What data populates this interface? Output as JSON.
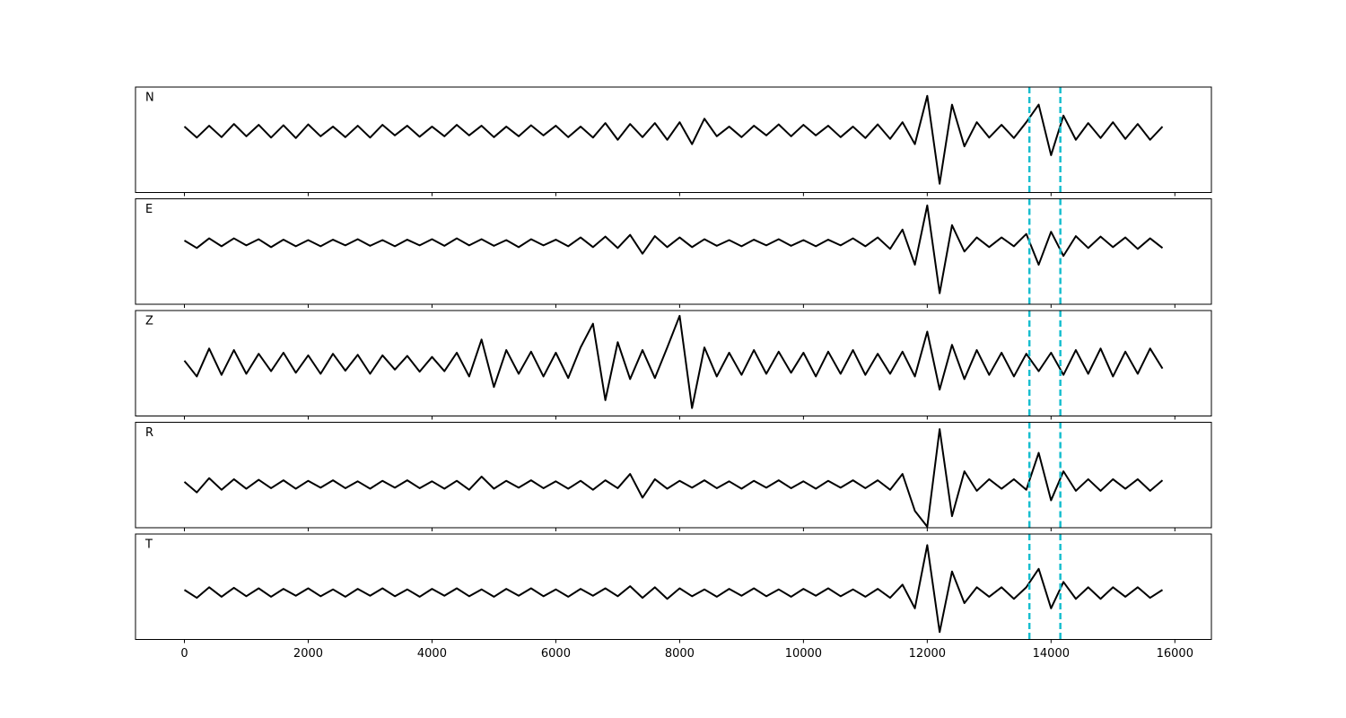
{
  "chart_data": [
    {
      "type": "line",
      "label": "N",
      "color": "#000000",
      "xlim": [
        -790,
        16590
      ],
      "ylim": [
        -1.4,
        1
      ],
      "xticks": [
        0,
        2000,
        4000,
        6000,
        8000,
        10000,
        12000,
        14000,
        16000
      ],
      "xticklabels": false,
      "vlines": [
        13650,
        14150
      ],
      "vline_color": "#17becf",
      "x": [
        0,
        200,
        400,
        600,
        800,
        1000,
        1200,
        1400,
        1600,
        1800,
        2000,
        2200,
        2400,
        2600,
        2800,
        3000,
        3200,
        3400,
        3600,
        3800,
        4000,
        4200,
        4400,
        4600,
        4800,
        5000,
        5200,
        5400,
        5600,
        5800,
        6000,
        6200,
        6400,
        6600,
        6800,
        7000,
        7200,
        7400,
        7600,
        7800,
        8000,
        8200,
        8400,
        8600,
        8800,
        9000,
        9200,
        9400,
        9600,
        9800,
        10000,
        10200,
        10400,
        10600,
        10800,
        11000,
        11200,
        11400,
        11600,
        11800,
        12000,
        12200,
        12400,
        12600,
        12800,
        13000,
        13200,
        13400,
        13600,
        13800,
        14000,
        14200,
        14400,
        14600,
        14800,
        15000,
        15200,
        15400,
        15600,
        15800
      ],
      "values": [
        0.1,
        -0.15,
        0.12,
        -0.14,
        0.16,
        -0.12,
        0.14,
        -0.15,
        0.13,
        -0.16,
        0.15,
        -0.12,
        0.1,
        -0.14,
        0.12,
        -0.15,
        0.14,
        -0.1,
        0.12,
        -0.13,
        0.1,
        -0.12,
        0.14,
        -0.1,
        0.12,
        -0.14,
        0.1,
        -0.12,
        0.13,
        -0.1,
        0.12,
        -0.14,
        0.1,
        -0.15,
        0.18,
        -0.2,
        0.16,
        -0.14,
        0.18,
        -0.2,
        0.2,
        -0.3,
        0.28,
        -0.12,
        0.1,
        -0.14,
        0.12,
        -0.1,
        0.15,
        -0.12,
        0.14,
        -0.1,
        0.12,
        -0.14,
        0.1,
        -0.16,
        0.15,
        -0.18,
        0.2,
        -0.3,
        0.8,
        -1.2,
        0.6,
        -0.35,
        0.2,
        -0.15,
        0.14,
        -0.16,
        0.2,
        0.6,
        -0.55,
        0.35,
        -0.2,
        0.18,
        -0.16,
        0.2,
        -0.18,
        0.16,
        -0.2,
        0.1
      ]
    },
    {
      "type": "line",
      "label": "E",
      "color": "#000000",
      "xlim": [
        -790,
        16590
      ],
      "ylim": [
        -1.4,
        1
      ],
      "xticks": [
        0,
        2000,
        4000,
        6000,
        8000,
        10000,
        12000,
        14000,
        16000
      ],
      "xticklabels": false,
      "vlines": [
        13650,
        14150
      ],
      "vline_color": "#17becf",
      "x": [
        0,
        200,
        400,
        600,
        800,
        1000,
        1200,
        1400,
        1600,
        1800,
        2000,
        2200,
        2400,
        2600,
        2800,
        3000,
        3200,
        3400,
        3600,
        3800,
        4000,
        4200,
        4400,
        4600,
        4800,
        5000,
        5200,
        5400,
        5600,
        5800,
        6000,
        6200,
        6400,
        6600,
        6800,
        7000,
        7200,
        7400,
        7600,
        7800,
        8000,
        8200,
        8400,
        8600,
        8800,
        9000,
        9200,
        9400,
        9600,
        9800,
        10000,
        10200,
        10400,
        10600,
        10800,
        11000,
        11200,
        11400,
        11600,
        11800,
        12000,
        12200,
        12400,
        12600,
        12800,
        13000,
        13200,
        13400,
        13600,
        13800,
        14000,
        14200,
        14400,
        14600,
        14800,
        15000,
        15200,
        15400,
        15600,
        15800
      ],
      "values": [
        0.05,
        -0.12,
        0.1,
        -0.08,
        0.1,
        -0.06,
        0.08,
        -0.1,
        0.07,
        -0.08,
        0.06,
        -0.08,
        0.07,
        -0.06,
        0.08,
        -0.07,
        0.06,
        -0.08,
        0.07,
        -0.06,
        0.08,
        -0.07,
        0.1,
        -0.06,
        0.08,
        -0.07,
        0.06,
        -0.1,
        0.08,
        -0.06,
        0.07,
        -0.08,
        0.12,
        -0.1,
        0.14,
        -0.12,
        0.18,
        -0.25,
        0.15,
        -0.1,
        0.12,
        -0.1,
        0.08,
        -0.07,
        0.06,
        -0.08,
        0.07,
        -0.06,
        0.08,
        -0.07,
        0.06,
        -0.08,
        0.07,
        -0.06,
        0.1,
        -0.08,
        0.12,
        -0.14,
        0.3,
        -0.5,
        0.85,
        -1.15,
        0.4,
        -0.2,
        0.12,
        -0.1,
        0.12,
        -0.08,
        0.2,
        -0.5,
        0.25,
        -0.3,
        0.15,
        -0.12,
        0.14,
        -0.1,
        0.12,
        -0.14,
        0.1,
        -0.12
      ]
    },
    {
      "type": "line",
      "label": "Z",
      "color": "#000000",
      "xlim": [
        -790,
        16590
      ],
      "ylim": [
        -1,
        1
      ],
      "xticks": [
        0,
        2000,
        4000,
        6000,
        8000,
        10000,
        12000,
        14000,
        16000
      ],
      "xticklabels": false,
      "vlines": [
        13650,
        14150
      ],
      "vline_color": "#17becf",
      "x": [
        0,
        200,
        400,
        600,
        800,
        1000,
        1200,
        1400,
        1600,
        1800,
        2000,
        2200,
        2400,
        2600,
        2800,
        3000,
        3200,
        3400,
        3600,
        3800,
        4000,
        4200,
        4400,
        4600,
        4800,
        5000,
        5200,
        5400,
        5600,
        5800,
        6000,
        6200,
        6400,
        6600,
        6800,
        7000,
        7200,
        7400,
        7600,
        7800,
        8000,
        8200,
        8400,
        8600,
        8800,
        9000,
        9200,
        9400,
        9600,
        9800,
        10000,
        10200,
        10400,
        10600,
        10800,
        11000,
        11200,
        11400,
        11600,
        11800,
        12000,
        12200,
        12400,
        12600,
        12800,
        13000,
        13200,
        13400,
        13600,
        13800,
        14000,
        14200,
        14400,
        14600,
        14800,
        15000,
        15200,
        15400,
        15600,
        15800
      ],
      "values": [
        0.05,
        -0.25,
        0.28,
        -0.22,
        0.25,
        -0.2,
        0.18,
        -0.15,
        0.2,
        -0.18,
        0.15,
        -0.2,
        0.18,
        -0.14,
        0.16,
        -0.2,
        0.15,
        -0.12,
        0.14,
        -0.16,
        0.12,
        -0.15,
        0.2,
        -0.25,
        0.45,
        -0.45,
        0.25,
        -0.2,
        0.22,
        -0.25,
        0.2,
        -0.28,
        0.3,
        0.75,
        -0.7,
        0.4,
        -0.3,
        0.25,
        -0.28,
        0.3,
        0.9,
        -0.85,
        0.3,
        -0.25,
        0.2,
        -0.22,
        0.25,
        -0.2,
        0.22,
        -0.18,
        0.2,
        -0.25,
        0.22,
        -0.2,
        0.25,
        -0.22,
        0.18,
        -0.2,
        0.22,
        -0.25,
        0.6,
        -0.5,
        0.35,
        -0.3,
        0.25,
        -0.22,
        0.2,
        -0.25,
        0.18,
        -0.15,
        0.2,
        -0.22,
        0.25,
        -0.2,
        0.28,
        -0.25,
        0.22,
        -0.2,
        0.28,
        -0.1
      ]
    },
    {
      "type": "line",
      "label": "R",
      "color": "#000000",
      "xlim": [
        -790,
        16590
      ],
      "ylim": [
        -0.82,
        1.18
      ],
      "xticks": [
        0,
        2000,
        4000,
        6000,
        8000,
        10000,
        12000,
        14000,
        16000
      ],
      "xticklabels": false,
      "vlines": [
        13650,
        14150
      ],
      "vline_color": "#17becf",
      "x": [
        0,
        200,
        400,
        600,
        800,
        1000,
        1200,
        1400,
        1600,
        1800,
        2000,
        2200,
        2400,
        2600,
        2800,
        3000,
        3200,
        3400,
        3600,
        3800,
        4000,
        4200,
        4400,
        4600,
        4800,
        5000,
        5200,
        5400,
        5600,
        5800,
        6000,
        6200,
        6400,
        6600,
        6800,
        7000,
        7200,
        7400,
        7600,
        7800,
        8000,
        8200,
        8400,
        8600,
        8800,
        9000,
        9200,
        9400,
        9600,
        9800,
        10000,
        10200,
        10400,
        10600,
        10800,
        11000,
        11200,
        11400,
        11600,
        11800,
        12000,
        12200,
        12400,
        12600,
        12800,
        13000,
        13200,
        13400,
        13600,
        13800,
        14000,
        14200,
        14400,
        14600,
        14800,
        15000,
        15200,
        15400,
        15600,
        15800
      ],
      "values": [
        0.05,
        -0.15,
        0.12,
        -0.1,
        0.1,
        -0.08,
        0.09,
        -0.07,
        0.08,
        -0.08,
        0.07,
        -0.06,
        0.08,
        -0.07,
        0.06,
        -0.08,
        0.07,
        -0.06,
        0.08,
        -0.07,
        0.06,
        -0.08,
        0.07,
        -0.1,
        0.15,
        -0.08,
        0.07,
        -0.06,
        0.08,
        -0.07,
        0.06,
        -0.08,
        0.07,
        -0.1,
        0.08,
        -0.07,
        0.2,
        -0.25,
        0.1,
        -0.08,
        0.07,
        -0.06,
        0.08,
        -0.07,
        0.06,
        -0.08,
        0.07,
        -0.06,
        0.08,
        -0.07,
        0.06,
        -0.08,
        0.07,
        -0.06,
        0.08,
        -0.07,
        0.08,
        -0.1,
        0.2,
        -0.5,
        -0.8,
        1.05,
        -0.6,
        0.25,
        -0.12,
        0.1,
        -0.08,
        0.1,
        -0.1,
        0.6,
        -0.3,
        0.25,
        -0.12,
        0.1,
        -0.12,
        0.1,
        -0.08,
        0.1,
        -0.12,
        0.08
      ]
    },
    {
      "type": "line",
      "label": "T",
      "color": "#000000",
      "xlim": [
        -790,
        16590
      ],
      "ylim": [
        -0.89,
        1.11
      ],
      "xticks": [
        0,
        2000,
        4000,
        6000,
        8000,
        10000,
        12000,
        14000,
        16000
      ],
      "xticklabels": true,
      "vlines": [
        13650,
        14150
      ],
      "vline_color": "#17becf",
      "x": [
        0,
        200,
        400,
        600,
        800,
        1000,
        1200,
        1400,
        1600,
        1800,
        2000,
        2200,
        2400,
        2600,
        2800,
        3000,
        3200,
        3400,
        3600,
        3800,
        4000,
        4200,
        4400,
        4600,
        4800,
        5000,
        5200,
        5400,
        5600,
        5800,
        6000,
        6200,
        6400,
        6600,
        6800,
        7000,
        7200,
        7400,
        7600,
        7800,
        8000,
        8200,
        8400,
        8600,
        8800,
        9000,
        9200,
        9400,
        9600,
        9800,
        10000,
        10200,
        10400,
        10600,
        10800,
        11000,
        11200,
        11400,
        11600,
        11800,
        12000,
        12200,
        12400,
        12600,
        12800,
        13000,
        13200,
        13400,
        13600,
        13800,
        14000,
        14200,
        14400,
        14600,
        14800,
        15000,
        15200,
        15400,
        15600,
        15800
      ],
      "values": [
        0.05,
        -0.1,
        0.1,
        -0.08,
        0.09,
        -0.07,
        0.08,
        -0.08,
        0.07,
        -0.06,
        0.08,
        -0.07,
        0.06,
        -0.08,
        0.07,
        -0.06,
        0.08,
        -0.07,
        0.06,
        -0.08,
        0.07,
        -0.06,
        0.08,
        -0.07,
        0.06,
        -0.08,
        0.07,
        -0.06,
        0.08,
        -0.07,
        0.06,
        -0.08,
        0.07,
        -0.06,
        0.08,
        -0.07,
        0.12,
        -0.1,
        0.1,
        -0.12,
        0.08,
        -0.07,
        0.06,
        -0.08,
        0.07,
        -0.06,
        0.08,
        -0.07,
        0.06,
        -0.08,
        0.07,
        -0.06,
        0.08,
        -0.07,
        0.06,
        -0.08,
        0.07,
        -0.1,
        0.15,
        -0.3,
        0.9,
        -0.75,
        0.4,
        -0.2,
        0.1,
        -0.08,
        0.1,
        -0.12,
        0.1,
        0.45,
        -0.3,
        0.2,
        -0.12,
        0.1,
        -0.12,
        0.1,
        -0.08,
        0.1,
        -0.1,
        0.05
      ]
    }
  ]
}
